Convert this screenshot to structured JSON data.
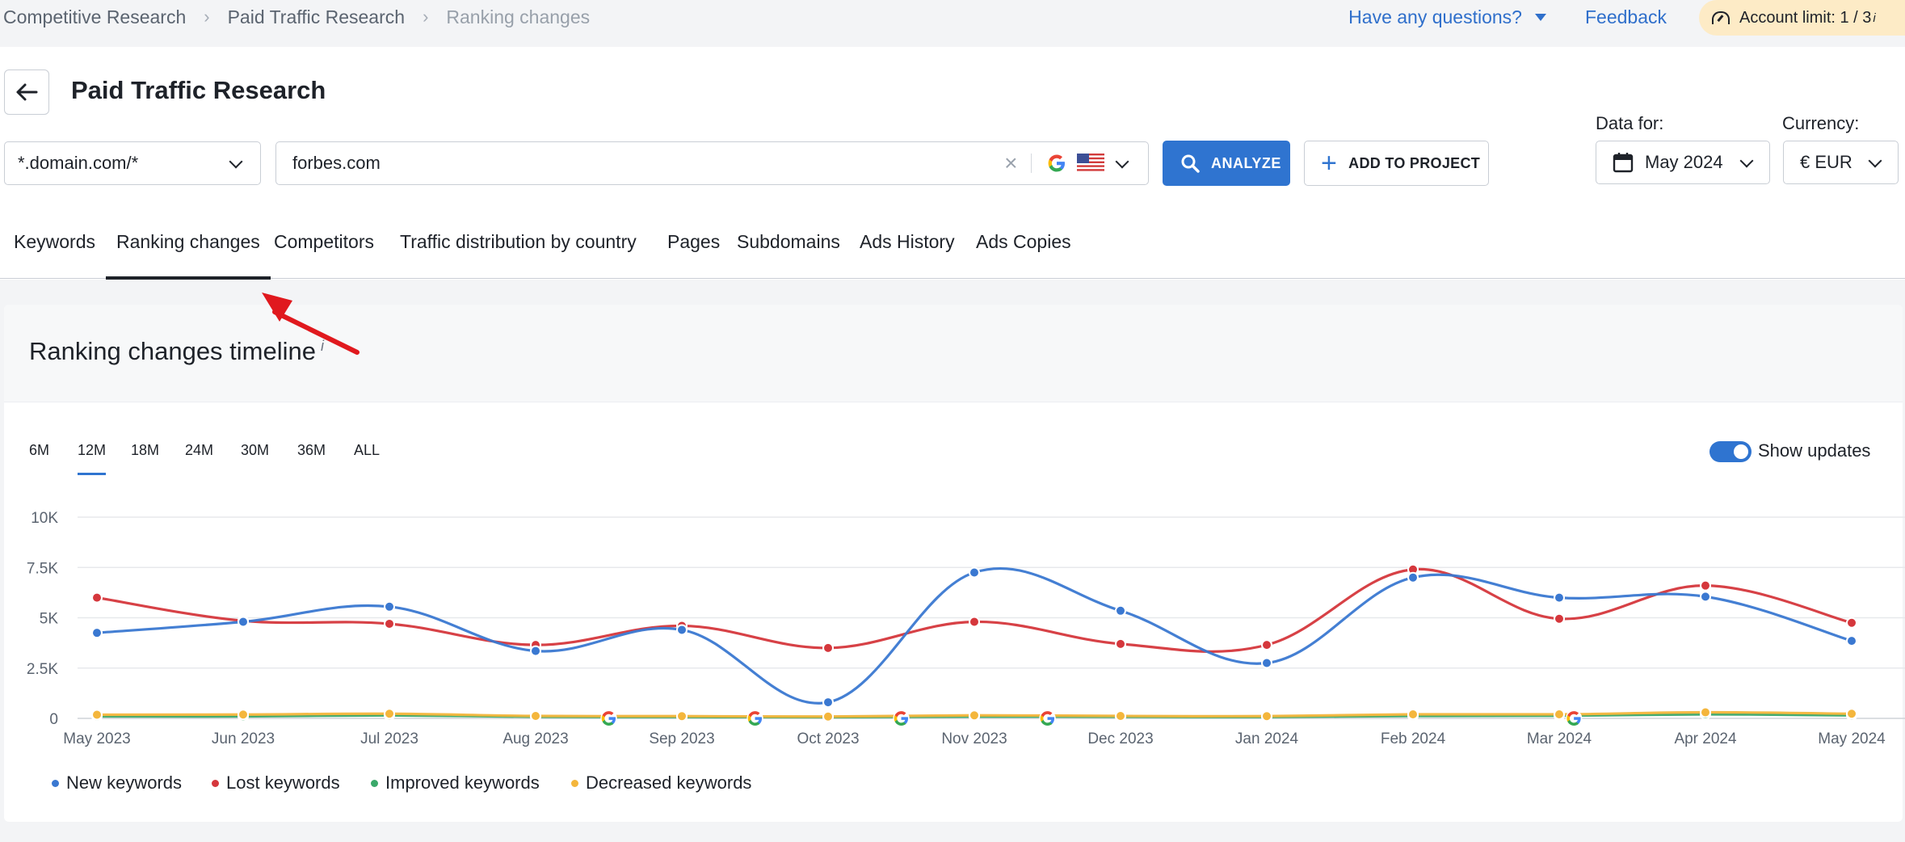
{
  "breadcrumbs": [
    "Competitive Research",
    "Paid Traffic Research",
    "Ranking changes"
  ],
  "topbar": {
    "questions": "Have any questions?",
    "feedback": "Feedback",
    "account_limit_label": "Account limit:",
    "account_limit_value": "1 / 3",
    "info_mark": "i"
  },
  "header": {
    "title": "Paid Traffic Research"
  },
  "controls": {
    "domain_mode": "*.domain.com/*",
    "search_value": "forbes.com",
    "clear": "×",
    "analyze": "ANALYZE",
    "add_to_project": "ADD TO PROJECT",
    "data_for_label": "Data for:",
    "date_value": "May 2024",
    "currency_label": "Currency:",
    "currency_value": "€ EUR"
  },
  "tabs": [
    "Keywords",
    "Ranking changes",
    "Competitors",
    "Traffic distribution by country",
    "Pages",
    "Subdomains",
    "Ads History",
    "Ads Copies"
  ],
  "active_tab": "Ranking changes",
  "card": {
    "title": "Ranking changes timeline",
    "info_mark": "i",
    "ranges": [
      "6M",
      "12M",
      "18M",
      "24M",
      "30M",
      "36M",
      "ALL"
    ],
    "active_range": "12M",
    "show_updates_label": "Show updates",
    "show_updates_on": true
  },
  "colors": {
    "new": "#3a78d1",
    "lost": "#d5373c",
    "improved": "#3aa86a",
    "decreased": "#f4b63c",
    "accent": "#2f74d0",
    "annotation_arrow": "#e0191e"
  },
  "chart_data": {
    "type": "line",
    "x": [
      "May 2023",
      "Jun 2023",
      "Jul 2023",
      "Aug 2023",
      "Sep 2023",
      "Oct 2023",
      "Nov 2023",
      "Dec 2023",
      "Jan 2024",
      "Feb 2024",
      "Mar 2024",
      "Apr 2024",
      "May 2024"
    ],
    "y_ticks": [
      "0",
      "2.5K",
      "5K",
      "7.5K",
      "10K"
    ],
    "ylim": [
      0,
      10000
    ],
    "grid": true,
    "legend_position": "bottom-left",
    "series": [
      {
        "name": "New keywords",
        "key": "new",
        "values": [
          4250,
          4800,
          5550,
          3350,
          4400,
          800,
          7250,
          5350,
          2750,
          7000,
          6000,
          6050,
          3850
        ]
      },
      {
        "name": "Lost keywords",
        "key": "lost",
        "values": [
          6000,
          4850,
          4700,
          3650,
          4600,
          3500,
          4800,
          3700,
          3650,
          7400,
          4950,
          6600,
          4750
        ]
      },
      {
        "name": "Improved keywords",
        "key": "improved",
        "values": [
          100,
          100,
          150,
          80,
          70,
          60,
          90,
          80,
          70,
          120,
          130,
          200,
          150
        ]
      },
      {
        "name": "Decreased keywords",
        "key": "decreased",
        "values": [
          180,
          190,
          230,
          120,
          110,
          90,
          150,
          120,
          110,
          200,
          200,
          300,
          230
        ]
      }
    ],
    "update_markers_between": [
      [
        3.5
      ],
      [
        4.5
      ],
      [
        5.5
      ],
      [
        6.5
      ],
      [
        10.1
      ]
    ]
  }
}
